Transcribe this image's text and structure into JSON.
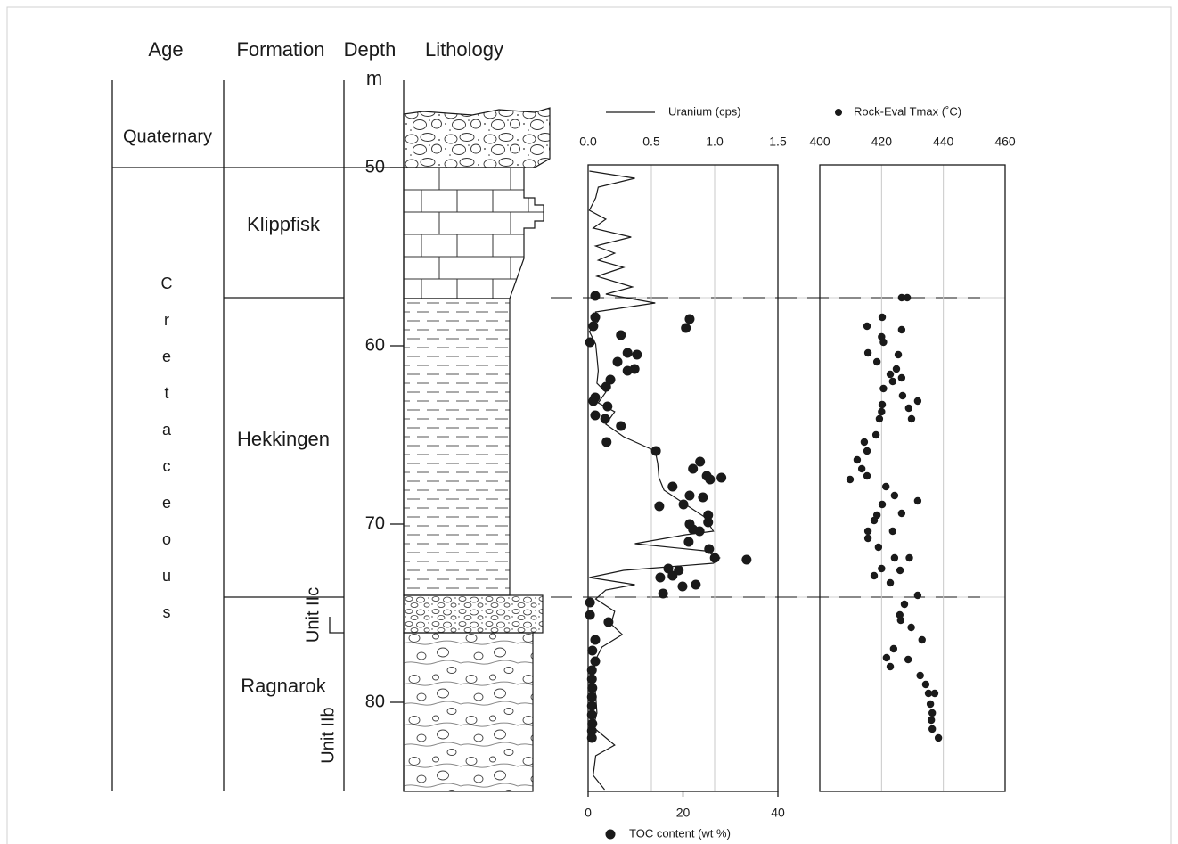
{
  "chart_data": {
    "type": "log",
    "headers": {
      "age": "Age",
      "formation": "Formation",
      "depth": "Depth",
      "depth_unit": "m",
      "lithology": "Lithology"
    },
    "ylim": [
      46.6,
      85
    ],
    "yticks": [
      50,
      60,
      70,
      80
    ],
    "ages": [
      {
        "name": "Quaternary",
        "base": 50
      },
      {
        "name": "Cretaceous"
      }
    ],
    "formations": [
      {
        "name": "Klippfisk",
        "top": 50,
        "base": 57.3
      },
      {
        "name": "Hekkingen",
        "top": 57.3,
        "base": 74.1
      },
      {
        "name": "Ragnarok",
        "top": 74.1
      }
    ],
    "units": [
      {
        "name": "Unit IIc",
        "top": 74.1,
        "base": 76.1
      },
      {
        "name": "Unit IIb",
        "top": 76.1
      }
    ],
    "panels": [
      {
        "series": [
          {
            "name": "Uranium (cps)",
            "type": "line",
            "axis": "top",
            "color": "#1a1a1a",
            "grid": true,
            "xlim": [
              0,
              1.5
            ],
            "xticks": [
              {
                "value": 0,
                "label": "0.0"
              },
              0.5,
              {
                "value": 1,
                "label": "1.0"
              },
              1.5
            ],
            "depth": [
              50.2,
              50.6,
              51.1,
              51.7,
              52.4,
              52.9,
              53.4,
              53.9,
              54.4,
              54.8,
              55.2,
              55.6,
              56.1,
              56.7,
              57.1,
              57.6,
              58.1,
              58.6,
              59.2,
              59.9,
              60.6,
              61.4,
              62.1,
              62.6,
              63.2,
              63.7,
              64.4,
              65.1,
              65.9,
              66.6,
              67.4,
              68.1,
              68.9,
              69.6,
              70.4,
              70.6,
              71.1,
              71.5,
              71.9,
              72.2,
              72.6,
              73.0,
              73.4,
              73.7,
              74.2,
              74.9,
              75.6,
              76.2,
              76.9,
              77.6,
              78.6,
              79.6,
              80.6,
              81.4,
              82.4,
              83.0,
              84.1,
              84.9
            ],
            "values": [
              0.01,
              0.37,
              0.08,
              0.06,
              0.01,
              0.14,
              0.04,
              0.34,
              0.06,
              0.21,
              0.08,
              0.28,
              0.07,
              0.35,
              0.14,
              0.53,
              0.06,
              0.08,
              0.01,
              0.06,
              0.07,
              0.08,
              0.07,
              0.14,
              0.08,
              0.21,
              0.14,
              0.28,
              0.53,
              0.55,
              0.56,
              0.6,
              0.77,
              0.92,
              0.99,
              0.77,
              0.37,
              0.92,
              1.04,
              0.99,
              0.28,
              0.01,
              0.37,
              0.14,
              0.06,
              0.21,
              0.18,
              0.27,
              0.11,
              0.06,
              0.04,
              0.06,
              0.07,
              0.04,
              0.21,
              0.06,
              0.04,
              0.13
            ]
          },
          {
            "name": "TOC content (wt %)",
            "type": "scatter",
            "axis": "bottom",
            "color": "#1a1a1a",
            "xlim": [
              0,
              40
            ],
            "xticks": [
              0,
              20,
              40
            ],
            "depth": [
              57.2,
              58.4,
              58.9,
              58.5,
              59.0,
              59.4,
              59.8,
              60.4,
              60.5,
              60.9,
              61.3,
              61.4,
              61.9,
              62.3,
              62.9,
              63.1,
              63.4,
              63.9,
              64.1,
              64.5,
              65.4,
              65.9,
              66.5,
              66.9,
              67.3,
              67.5,
              67.4,
              67.9,
              68.4,
              68.5,
              68.9,
              69.0,
              69.5,
              69.9,
              70.0,
              70.3,
              70.4,
              71.0,
              71.4,
              71.9,
              72.0,
              72.5,
              72.6,
              72.9,
              73.0,
              73.5,
              73.4,
              73.9,
              74.4,
              75.5,
              75.1,
              76.5,
              77.1,
              77.7,
              78.2,
              78.7,
              79.2,
              79.7,
              80.2,
              80.7,
              81.2,
              81.6,
              82.0
            ],
            "values": [
              1.5,
              1.5,
              1.1,
              21.4,
              20.6,
              6.9,
              0.4,
              8.3,
              10.3,
              6.2,
              9.8,
              8.3,
              4.7,
              3.8,
              1.5,
              1.1,
              4.1,
              1.5,
              3.6,
              6.9,
              3.9,
              14.3,
              23.6,
              22.1,
              25.0,
              25.7,
              28.1,
              17.8,
              21.4,
              24.2,
              20.1,
              15.0,
              25.3,
              25.3,
              21.4,
              22.1,
              23.5,
              21.2,
              25.5,
              26.7,
              33.4,
              16.9,
              19.1,
              17.8,
              15.2,
              19.9,
              22.7,
              15.8,
              0.4,
              4.3,
              0.4,
              1.5,
              0.9,
              1.5,
              0.8,
              0.8,
              0.9,
              0.8,
              0.8,
              0.8,
              0.9,
              0.8,
              0.8
            ]
          }
        ]
      },
      {
        "series": [
          {
            "name": "Rock-Eval Tmax (˚C)",
            "type": "scatter",
            "axis": "top",
            "color": "#1a1a1a",
            "grid": true,
            "xlim": [
              400,
              460
            ],
            "xticks": [
              400,
              420,
              440,
              460
            ],
            "depth": [
              57.3,
              57.3,
              58.4,
              58.9,
              59.5,
              59.1,
              59.8,
              60.4,
              60.5,
              60.9,
              61.3,
              61.6,
              61.8,
              62.0,
              62.4,
              62.8,
              63.1,
              63.3,
              63.5,
              63.7,
              64.1,
              64.1,
              65.0,
              65.4,
              65.9,
              66.4,
              66.9,
              67.3,
              67.5,
              67.9,
              68.4,
              68.7,
              68.9,
              69.4,
              69.5,
              69.8,
              70.4,
              70.4,
              70.8,
              71.3,
              71.9,
              71.9,
              72.5,
              72.6,
              72.9,
              73.3,
              74.0,
              74.5,
              75.1,
              75.4,
              75.8,
              76.5,
              77.0,
              77.6,
              77.5,
              78.0,
              78.5,
              79.0,
              79.5,
              79.5,
              80.1,
              80.6,
              81.0,
              81.5,
              82.0
            ],
            "values": [
              426.5,
              428.3,
              420.2,
              415.3,
              420.0,
              426.5,
              420.6,
              415.6,
              425.4,
              418.5,
              424.8,
              422.8,
              426.5,
              423.6,
              420.6,
              426.8,
              431.7,
              420.2,
              428.8,
              420.0,
              419.3,
              429.7,
              418.2,
              414.4,
              415.3,
              412.1,
              413.6,
              415.3,
              409.8,
              421.4,
              424.2,
              431.7,
              420.2,
              426.5,
              418.5,
              417.6,
              415.6,
              423.6,
              415.6,
              419.0,
              424.2,
              429.0,
              420.0,
              426.0,
              417.6,
              422.8,
              431.7,
              427.4,
              425.9,
              426.2,
              429.6,
              433.1,
              423.9,
              428.6,
              421.6,
              422.8,
              432.5,
              434.3,
              437.2,
              435.2,
              435.8,
              436.4,
              436.1,
              436.4,
              438.4
            ]
          }
        ]
      }
    ]
  }
}
